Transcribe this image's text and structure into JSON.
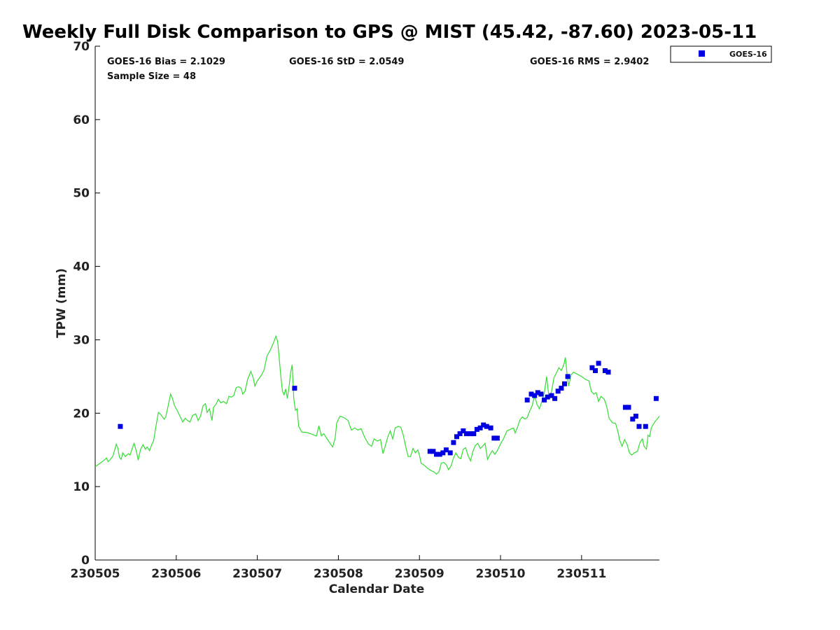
{
  "chart_data": {
    "type": "scatter",
    "title": "Weekly Full Disk Comparison to GPS @ MIST (45.42, -87.60) 2023-05-11",
    "xlabel": "Calendar Date",
    "ylabel": "TPW (mm)",
    "xlim": [
      0,
      6.96
    ],
    "ylim": [
      0,
      70
    ],
    "x_ticks": [
      {
        "label": "230505",
        "value": 0
      },
      {
        "label": "230506",
        "value": 1
      },
      {
        "label": "230507",
        "value": 2
      },
      {
        "label": "230508",
        "value": 3
      },
      {
        "label": "230509",
        "value": 4
      },
      {
        "label": "230510",
        "value": 5
      },
      {
        "label": "230511",
        "value": 6
      }
    ],
    "y_ticks": [
      {
        "label": "0",
        "value": 0
      },
      {
        "label": "10",
        "value": 10
      },
      {
        "label": "20",
        "value": 20
      },
      {
        "label": "30",
        "value": 30
      },
      {
        "label": "40",
        "value": 40
      },
      {
        "label": "50",
        "value": 50
      },
      {
        "label": "60",
        "value": 60
      },
      {
        "label": "70",
        "value": 70
      }
    ],
    "stats": {
      "bias": "GOES-16 Bias = 2.1029",
      "std": "GOES-16 StD = 2.0549",
      "rms": "GOES-16 RMS = 2.9402",
      "sample": "Sample Size = 48"
    },
    "legend": {
      "position": "top-right-outside",
      "entries": [
        {
          "name": "GOES-16",
          "color": "#0000e0",
          "marker": "square"
        }
      ]
    },
    "grid": false,
    "series": [
      {
        "name": "GOES-16",
        "kind": "scatter",
        "color": "#0000e0",
        "points": [
          [
            0.31,
            18.2
          ],
          [
            2.46,
            23.4
          ],
          [
            4.13,
            14.8
          ],
          [
            4.17,
            14.8
          ],
          [
            4.21,
            14.4
          ],
          [
            4.25,
            14.4
          ],
          [
            4.29,
            14.6
          ],
          [
            4.33,
            15.0
          ],
          [
            4.38,
            14.6
          ],
          [
            4.42,
            16.0
          ],
          [
            4.46,
            16.8
          ],
          [
            4.5,
            17.2
          ],
          [
            4.54,
            17.6
          ],
          [
            4.58,
            17.2
          ],
          [
            4.63,
            17.2
          ],
          [
            4.67,
            17.2
          ],
          [
            4.71,
            17.8
          ],
          [
            4.75,
            18.0
          ],
          [
            4.79,
            18.4
          ],
          [
            4.83,
            18.2
          ],
          [
            4.88,
            18.0
          ],
          [
            4.92,
            16.6
          ],
          [
            4.96,
            16.6
          ],
          [
            5.33,
            21.8
          ],
          [
            5.38,
            22.6
          ],
          [
            5.42,
            22.4
          ],
          [
            5.46,
            22.8
          ],
          [
            5.5,
            22.6
          ],
          [
            5.54,
            21.8
          ],
          [
            5.58,
            22.2
          ],
          [
            5.63,
            22.4
          ],
          [
            5.67,
            22.0
          ],
          [
            5.71,
            23.0
          ],
          [
            5.75,
            23.4
          ],
          [
            5.79,
            24.0
          ],
          [
            5.83,
            25.0
          ],
          [
            6.13,
            26.2
          ],
          [
            6.17,
            25.8
          ],
          [
            6.21,
            26.8
          ],
          [
            6.29,
            25.8
          ],
          [
            6.33,
            25.6
          ],
          [
            6.54,
            20.8
          ],
          [
            6.58,
            20.8
          ],
          [
            6.63,
            19.2
          ],
          [
            6.67,
            19.6
          ],
          [
            6.71,
            18.2
          ],
          [
            6.79,
            18.2
          ],
          [
            6.92,
            22.0
          ]
        ]
      },
      {
        "name": "",
        "kind": "line",
        "color": "#33dd33",
        "points": [
          [
            0.0,
            12.7
          ],
          [
            0.05,
            13.1
          ],
          [
            0.1,
            13.5
          ],
          [
            0.14,
            13.9
          ],
          [
            0.16,
            13.4
          ],
          [
            0.18,
            13.6
          ],
          [
            0.22,
            14.2
          ],
          [
            0.26,
            15.8
          ],
          [
            0.28,
            15.2
          ],
          [
            0.3,
            14.0
          ],
          [
            0.32,
            13.7
          ],
          [
            0.34,
            14.6
          ],
          [
            0.37,
            14.1
          ],
          [
            0.41,
            14.5
          ],
          [
            0.43,
            14.3
          ],
          [
            0.46,
            15.3
          ],
          [
            0.48,
            15.9
          ],
          [
            0.51,
            14.7
          ],
          [
            0.53,
            13.6
          ],
          [
            0.56,
            15.1
          ],
          [
            0.59,
            15.7
          ],
          [
            0.62,
            15.1
          ],
          [
            0.64,
            15.4
          ],
          [
            0.67,
            14.9
          ],
          [
            0.7,
            15.8
          ],
          [
            0.72,
            16.2
          ],
          [
            0.75,
            18.3
          ],
          [
            0.78,
            20.1
          ],
          [
            0.81,
            19.8
          ],
          [
            0.85,
            19.2
          ],
          [
            0.87,
            19.5
          ],
          [
            0.9,
            21.0
          ],
          [
            0.93,
            22.6
          ],
          [
            0.95,
            22.1
          ],
          [
            0.98,
            21.0
          ],
          [
            1.01,
            20.4
          ],
          [
            1.05,
            19.5
          ],
          [
            1.08,
            18.8
          ],
          [
            1.11,
            19.3
          ],
          [
            1.14,
            19.0
          ],
          [
            1.17,
            18.8
          ],
          [
            1.2,
            19.7
          ],
          [
            1.24,
            19.9
          ],
          [
            1.27,
            19.0
          ],
          [
            1.3,
            19.6
          ],
          [
            1.33,
            21.0
          ],
          [
            1.36,
            21.3
          ],
          [
            1.38,
            20.1
          ],
          [
            1.41,
            20.6
          ],
          [
            1.44,
            19.0
          ],
          [
            1.46,
            20.8
          ],
          [
            1.49,
            21.2
          ],
          [
            1.52,
            21.9
          ],
          [
            1.55,
            21.4
          ],
          [
            1.58,
            21.6
          ],
          [
            1.62,
            21.3
          ],
          [
            1.65,
            22.3
          ],
          [
            1.68,
            22.2
          ],
          [
            1.71,
            22.4
          ],
          [
            1.74,
            23.5
          ],
          [
            1.77,
            23.6
          ],
          [
            1.8,
            23.4
          ],
          [
            1.82,
            22.6
          ],
          [
            1.85,
            23.0
          ],
          [
            1.88,
            24.6
          ],
          [
            1.92,
            25.7
          ],
          [
            1.95,
            24.8
          ],
          [
            1.97,
            23.7
          ],
          [
            2.0,
            24.4
          ],
          [
            2.04,
            25.0
          ],
          [
            2.08,
            25.8
          ],
          [
            2.12,
            27.8
          ],
          [
            2.16,
            28.6
          ],
          [
            2.2,
            29.6
          ],
          [
            2.23,
            30.5
          ],
          [
            2.25,
            29.8
          ],
          [
            2.27,
            27.5
          ],
          [
            2.29,
            25.0
          ],
          [
            2.31,
            23.0
          ],
          [
            2.33,
            22.5
          ],
          [
            2.35,
            23.3
          ],
          [
            2.37,
            22.0
          ],
          [
            2.39,
            23.5
          ],
          [
            2.41,
            25.5
          ],
          [
            2.43,
            26.6
          ],
          [
            2.45,
            22.0
          ],
          [
            2.47,
            20.4
          ],
          [
            2.49,
            20.6
          ],
          [
            2.51,
            18.2
          ],
          [
            2.55,
            17.4
          ],
          [
            2.6,
            17.4
          ],
          [
            2.66,
            17.2
          ],
          [
            2.7,
            17.0
          ],
          [
            2.73,
            16.9
          ],
          [
            2.76,
            18.3
          ],
          [
            2.79,
            16.9
          ],
          [
            2.82,
            17.2
          ],
          [
            2.86,
            16.5
          ],
          [
            2.89,
            16.0
          ],
          [
            2.93,
            15.4
          ],
          [
            2.96,
            16.6
          ],
          [
            2.98,
            18.7
          ],
          [
            3.02,
            19.6
          ],
          [
            3.07,
            19.4
          ],
          [
            3.12,
            19.0
          ],
          [
            3.16,
            17.7
          ],
          [
            3.2,
            18.0
          ],
          [
            3.24,
            17.7
          ],
          [
            3.28,
            17.9
          ],
          [
            3.32,
            16.8
          ],
          [
            3.37,
            15.8
          ],
          [
            3.41,
            15.5
          ],
          [
            3.44,
            16.5
          ],
          [
            3.48,
            16.2
          ],
          [
            3.52,
            16.4
          ],
          [
            3.55,
            14.5
          ],
          [
            3.58,
            15.6
          ],
          [
            3.61,
            16.8
          ],
          [
            3.64,
            17.6
          ],
          [
            3.67,
            16.5
          ],
          [
            3.7,
            18.0
          ],
          [
            3.74,
            18.2
          ],
          [
            3.77,
            18.1
          ],
          [
            3.8,
            17.0
          ],
          [
            3.83,
            15.5
          ],
          [
            3.86,
            14.1
          ],
          [
            3.89,
            14.1
          ],
          [
            3.92,
            15.2
          ],
          [
            3.95,
            14.6
          ],
          [
            3.98,
            15.0
          ],
          [
            4.0,
            14.3
          ],
          [
            4.02,
            13.2
          ],
          [
            4.06,
            12.9
          ],
          [
            4.1,
            12.5
          ],
          [
            4.14,
            12.2
          ],
          [
            4.18,
            12.0
          ],
          [
            4.21,
            11.7
          ],
          [
            4.24,
            12.0
          ],
          [
            4.27,
            13.2
          ],
          [
            4.3,
            13.3
          ],
          [
            4.33,
            13.0
          ],
          [
            4.36,
            12.3
          ],
          [
            4.39,
            12.8
          ],
          [
            4.42,
            13.9
          ],
          [
            4.45,
            14.6
          ],
          [
            4.48,
            14.0
          ],
          [
            4.51,
            13.8
          ],
          [
            4.54,
            15.1
          ],
          [
            4.57,
            15.3
          ],
          [
            4.6,
            14.2
          ],
          [
            4.63,
            13.5
          ],
          [
            4.66,
            14.8
          ],
          [
            4.69,
            15.6
          ],
          [
            4.72,
            15.9
          ],
          [
            4.75,
            15.2
          ],
          [
            4.78,
            15.5
          ],
          [
            4.81,
            15.9
          ],
          [
            4.84,
            13.7
          ],
          [
            4.87,
            14.4
          ],
          [
            4.9,
            14.9
          ],
          [
            4.93,
            14.4
          ],
          [
            4.96,
            14.9
          ],
          [
            5.0,
            15.8
          ],
          [
            5.04,
            16.6
          ],
          [
            5.08,
            17.6
          ],
          [
            5.12,
            17.8
          ],
          [
            5.16,
            18.0
          ],
          [
            5.18,
            17.3
          ],
          [
            5.21,
            18.1
          ],
          [
            5.24,
            19.1
          ],
          [
            5.27,
            19.5
          ],
          [
            5.3,
            19.2
          ],
          [
            5.33,
            19.4
          ],
          [
            5.36,
            20.3
          ],
          [
            5.39,
            21.0
          ],
          [
            5.42,
            22.4
          ],
          [
            5.45,
            21.2
          ],
          [
            5.48,
            20.6
          ],
          [
            5.51,
            21.6
          ],
          [
            5.54,
            22.8
          ],
          [
            5.57,
            25.0
          ],
          [
            5.6,
            21.9
          ],
          [
            5.63,
            23.0
          ],
          [
            5.66,
            24.9
          ],
          [
            5.69,
            25.5
          ],
          [
            5.72,
            26.2
          ],
          [
            5.75,
            25.8
          ],
          [
            5.78,
            26.6
          ],
          [
            5.8,
            27.6
          ],
          [
            5.82,
            25.4
          ],
          [
            5.84,
            23.7
          ],
          [
            5.87,
            25.2
          ],
          [
            5.9,
            25.6
          ],
          [
            5.95,
            25.3
          ],
          [
            6.0,
            25.0
          ],
          [
            6.05,
            24.6
          ],
          [
            6.09,
            24.4
          ],
          [
            6.12,
            23.0
          ],
          [
            6.15,
            22.6
          ],
          [
            6.18,
            22.8
          ],
          [
            6.21,
            21.6
          ],
          [
            6.24,
            22.3
          ],
          [
            6.28,
            21.9
          ],
          [
            6.31,
            20.9
          ],
          [
            6.34,
            19.3
          ],
          [
            6.38,
            18.7
          ],
          [
            6.42,
            18.6
          ],
          [
            6.45,
            17.4
          ],
          [
            6.47,
            16.3
          ],
          [
            6.5,
            15.5
          ],
          [
            6.53,
            16.4
          ],
          [
            6.56,
            15.8
          ],
          [
            6.59,
            14.6
          ],
          [
            6.62,
            14.3
          ],
          [
            6.65,
            14.6
          ],
          [
            6.69,
            14.8
          ],
          [
            6.72,
            16.0
          ],
          [
            6.75,
            16.5
          ],
          [
            6.77,
            15.5
          ],
          [
            6.8,
            15.1
          ],
          [
            6.82,
            17.0
          ],
          [
            6.84,
            16.8
          ],
          [
            6.86,
            18.0
          ],
          [
            6.88,
            18.4
          ],
          [
            6.91,
            18.9
          ],
          [
            6.94,
            19.3
          ],
          [
            6.96,
            19.6
          ]
        ]
      }
    ]
  }
}
